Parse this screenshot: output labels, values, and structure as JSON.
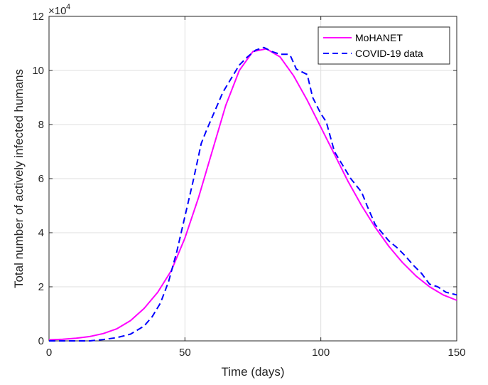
{
  "chart_data": {
    "type": "line",
    "xlabel": "Time (days)",
    "ylabel": "Total number of actively infected humans",
    "y_exponent_base": "×10",
    "y_exponent_power": "4",
    "xlim": [
      0,
      150
    ],
    "ylim": [
      0,
      12
    ],
    "x_ticks": [
      0,
      50,
      100,
      150
    ],
    "y_ticks": [
      0,
      2,
      4,
      6,
      8,
      10,
      12
    ],
    "grid": true,
    "legend_position": "top-right",
    "series": [
      {
        "name": "MoHANET",
        "color": "#ff00ff",
        "style": "solid",
        "x": [
          0,
          5,
          10,
          15,
          20,
          25,
          30,
          35,
          40,
          45,
          50,
          55,
          60,
          65,
          70,
          75,
          80,
          85,
          90,
          95,
          100,
          105,
          110,
          115,
          120,
          125,
          130,
          135,
          140,
          145,
          150
        ],
        "y": [
          0.04,
          0.06,
          0.1,
          0.16,
          0.27,
          0.45,
          0.75,
          1.2,
          1.8,
          2.6,
          3.8,
          5.3,
          7.0,
          8.7,
          10.0,
          10.7,
          10.8,
          10.5,
          9.8,
          8.9,
          7.9,
          6.9,
          5.9,
          5.0,
          4.2,
          3.5,
          2.9,
          2.4,
          2.0,
          1.7,
          1.5
        ]
      },
      {
        "name": "COVID-19 data",
        "color": "#0000ff",
        "style": "dashed",
        "x": [
          0,
          5,
          10,
          15,
          20,
          25,
          30,
          35,
          38,
          41,
          44,
          47,
          50,
          53,
          56,
          58,
          61,
          64,
          67,
          70,
          73,
          76,
          79,
          82,
          85,
          88,
          89,
          91,
          94,
          95,
          97,
          100,
          102,
          105,
          108,
          111,
          115,
          117,
          120,
          125,
          128,
          131,
          134,
          137,
          140,
          143,
          146,
          150
        ],
        "y": [
          0.0,
          0.0,
          0.0,
          0.0,
          0.05,
          0.12,
          0.25,
          0.55,
          0.9,
          1.4,
          2.2,
          3.3,
          4.6,
          5.9,
          7.3,
          7.8,
          8.5,
          9.2,
          9.7,
          10.2,
          10.5,
          10.75,
          10.85,
          10.7,
          10.6,
          10.6,
          10.5,
          10.05,
          9.9,
          9.85,
          9.0,
          8.4,
          8.1,
          7.0,
          6.5,
          6.0,
          5.5,
          5.0,
          4.3,
          3.7,
          3.45,
          3.15,
          2.8,
          2.5,
          2.1,
          2.0,
          1.8,
          1.7
        ]
      }
    ]
  }
}
